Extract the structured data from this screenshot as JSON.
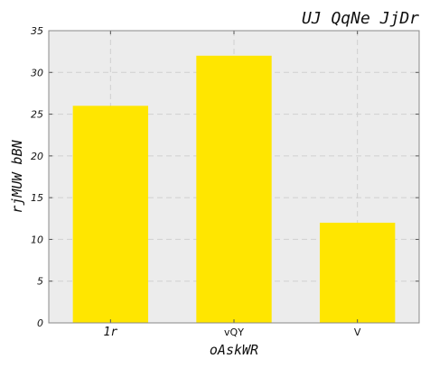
{
  "chart_data": {
    "type": "bar",
    "title": "UJ QqNe JjDr",
    "xlabel": "oAskWR",
    "ylabel": "rjMUW bBN",
    "categories": [
      "1r",
      "vQY",
      "V"
    ],
    "values": [
      26,
      32,
      12
    ],
    "ylim": [
      0,
      35
    ],
    "yticks": [
      0,
      5,
      10,
      15,
      20,
      25,
      30,
      35
    ],
    "grid": true,
    "bar_color": "#ffe600",
    "plot_background": "#ececec",
    "grid_color": "#d0d0d0"
  }
}
